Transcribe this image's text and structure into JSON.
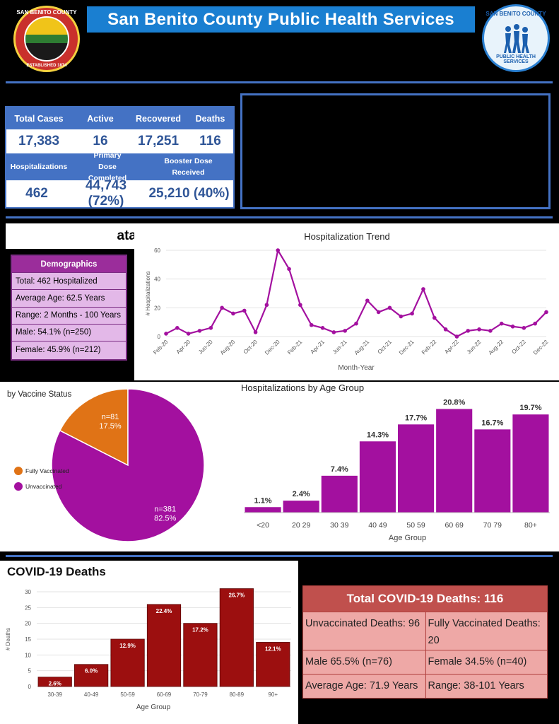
{
  "header": {
    "title": "San Benito County Public Health Services",
    "left_logo_text": "SAN BENITO COUNTY",
    "left_logo_sub": "ESTABLISHED 1874",
    "right_logo_text": "SAN BENITO COUNTY",
    "right_logo_sub": "PUBLIC HEALTH SERVICES"
  },
  "stats": {
    "row1_labels": [
      "Total Cases",
      "Active",
      "Recovered",
      "Deaths"
    ],
    "row1_values": [
      "17,383",
      "16",
      "17,251",
      "116"
    ],
    "row2_labels": [
      "Hospitalizations",
      "Primary Dose Completed",
      "Booster Dose Received"
    ],
    "row2_values": [
      "462",
      "44,743 (72%)",
      "25,210 (40%)"
    ]
  },
  "hospitalization_heading_fragment": "ata",
  "demographics": {
    "title": "Demographics",
    "rows": [
      "Total: 462 Hospitalized",
      "Average Age: 62.5 Years",
      "Range: 2 Months - 100 Years",
      "Male: 54.1% (n=250)",
      "Female: 45.9% (n=212)"
    ]
  },
  "colors": {
    "blue": "#4472c4",
    "purple": "#a3109f",
    "orange": "#e07316",
    "dark_red": "#9c0f0f",
    "table_red": "#c0504d"
  },
  "chart_data": [
    {
      "type": "line",
      "title": "Hospitalization Trend",
      "xlabel": "Month-Year",
      "ylabel": "# Hospitalizations",
      "ylim": [
        0,
        60
      ],
      "yticks": [
        0,
        20,
        40,
        60
      ],
      "tick_labels": [
        "Feb-20",
        "Apr-20",
        "Jun-20",
        "Aug-20",
        "Oct-20",
        "Dec-20",
        "Feb-21",
        "Apr-21",
        "Jun-21",
        "Aug-21",
        "Oct-21",
        "Dec-21",
        "Feb-22",
        "Apr-22",
        "Jun-22",
        "Aug-22",
        "Oct-22",
        "Dec-22"
      ],
      "values": [
        2,
        6,
        2,
        4,
        6,
        20,
        16,
        18,
        3,
        22,
        60,
        47,
        22,
        8,
        6,
        3,
        4,
        9,
        25,
        17,
        20,
        14,
        16,
        33,
        13,
        5,
        0,
        4,
        5,
        4,
        9,
        7,
        6,
        9,
        17
      ],
      "color": "#a3109f"
    },
    {
      "type": "pie",
      "title_fragment": "by Vaccine Status",
      "slices": [
        {
          "name": "Fully Vaccinated",
          "n_label": "n=81",
          "pct_label": "17.5%",
          "value": 17.5,
          "color": "#e07316"
        },
        {
          "name": "Unvaccinated",
          "n_label": "n=381",
          "pct_label": "82.5%",
          "value": 82.5,
          "color": "#a3109f"
        }
      ],
      "legend": "left"
    },
    {
      "type": "bar",
      "title": "Hospitalizations by Age Group",
      "xlabel": "Age Group",
      "categories": [
        "<20",
        "20 29",
        "30 39",
        "40 49",
        "50 59",
        "60 69",
        "70 79",
        "80+"
      ],
      "values": [
        1.1,
        2.4,
        7.4,
        14.3,
        17.7,
        20.8,
        16.7,
        19.7
      ],
      "labels": [
        "1.1%",
        "2.4%",
        "7.4%",
        "14.3%",
        "17.7%",
        "20.8%",
        "16.7%",
        "19.7%"
      ],
      "ylim": [
        0,
        22
      ],
      "color": "#a3109f"
    },
    {
      "type": "bar",
      "title": "COVID-19 Deaths",
      "xlabel": "Age Group",
      "ylabel": "# Deaths",
      "categories": [
        "30-39",
        "40-49",
        "50-59",
        "60-69",
        "70-79",
        "80-89",
        "90+"
      ],
      "values": [
        3,
        7,
        15,
        26,
        20,
        31,
        14
      ],
      "labels": [
        "2.6%",
        "6.0%",
        "12.9%",
        "22.4%",
        "17.2%",
        "26.7%",
        "12.1%"
      ],
      "ylim": [
        0,
        30
      ],
      "yticks": [
        0,
        5,
        10,
        15,
        20,
        25,
        30
      ],
      "color": "#9c0f0f"
    }
  ],
  "deaths_summary": {
    "title": "Total COVID-19  Deaths: 116",
    "rows": [
      [
        "Unvaccinated Deaths: 96",
        "Fully Vaccinated Deaths: 20"
      ],
      [
        "Male 65.5% (n=76)",
        "Female 34.5% (n=40)"
      ],
      [
        "Average Age: 71.9 Years",
        "Range: 38-101 Years"
      ]
    ]
  }
}
